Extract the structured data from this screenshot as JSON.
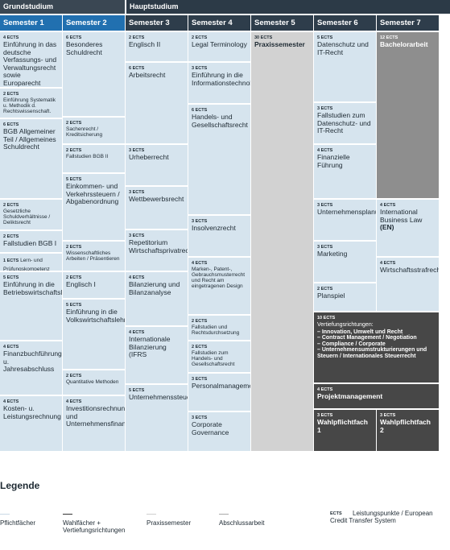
{
  "header": {
    "grundstudium": "Grundstudium",
    "hauptstudium": "Hauptstudium"
  },
  "semesters": [
    "Semester 1",
    "Semester 2",
    "Semester 3",
    "Semester 4",
    "Semester 5",
    "Semester 6",
    "Semester 7"
  ],
  "columns": [
    [
      {
        "ects": "4 ECTS",
        "title": "Einführung in das deutsche Verfassungs- und Verwaltungsrecht sowie Europarecht"
      },
      {
        "ects": "2 ECTS",
        "title": "Einführung Systematik u. Methodik d. Rechtswissenschaft."
      },
      {
        "ects": "6 ECTS",
        "title": "BGB Allgemeiner Teil / Allgemeines Schuldrecht"
      },
      {
        "ects": "2 ECTS",
        "title": "Gesetzliche Schuldverhältnisse / Deliktsrecht"
      },
      {
        "ects": "2 ECTS",
        "title": "Fallstudien BGB I"
      },
      {
        "ects": "1 ECTS",
        "title": "Lern- und Prüfungskompetenz"
      },
      {
        "ects": "5 ECTS",
        "title": "Einführung in die Betriebswirtschaftslehre"
      },
      {
        "ects": "4 ECTS",
        "title": "Finanzbuchführung u. Jahresabschluss"
      },
      {
        "ects": "4 ECTS",
        "title": "Kosten- u. Leistungsrechnung"
      }
    ],
    [
      {
        "ects": "6 ECTS",
        "title": "Besonderes Schuldrecht"
      },
      {
        "ects": "2 ECTS",
        "title": "Sachenrecht / Kreditsicherung"
      },
      {
        "ects": "2 ECTS",
        "title": "Fallstudien BGB II"
      },
      {
        "ects": "5 ECTS",
        "title": "Einkommen- und Verkehrssteuern / Abgabenordnung"
      },
      {
        "ects": "2 ECTS",
        "title": "Wissenschaftliches Arbeiten / Präsentieren"
      },
      {
        "ects": "2 ECTS",
        "title": "Englisch I"
      },
      {
        "ects": "5 ECTS",
        "title": "Einführung in die Volkswirtschaftslehre"
      },
      {
        "ects": "2 ECTS",
        "title": "Quantitative Methoden"
      },
      {
        "ects": "4 ECTS",
        "title": "Investitionsrechnung und Unternehmensfinanzierung"
      }
    ],
    [
      {
        "ects": "2 ECTS",
        "title": "Englisch II"
      },
      {
        "ects": "6 ECTS",
        "title": "Arbeitsrecht"
      },
      {
        "ects": "3 ECTS",
        "title": "Urheberrecht"
      },
      {
        "ects": "3 ECTS",
        "title": "Wettbewerbsrecht"
      },
      {
        "ects": "3 ECTS",
        "title": "Repetitorium Wirtschaftsprivatrecht"
      },
      {
        "ects": "4 ECTS",
        "title": "Bilanzierung und Bilanzanalyse"
      },
      {
        "ects": "4 ECTS",
        "title": "Internationale Bilanzierung (IFRS"
      },
      {
        "ects": "5 ECTS",
        "title": "Unternehmenssteuern"
      }
    ],
    [
      {
        "ects": "2 ECTS",
        "title": "Legal Terminology"
      },
      {
        "ects": "3 ECTS",
        "title": "Einführung in die Informationstechnologie"
      },
      {
        "ects": "6 ECTS",
        "title": "Handels- und Gesellschaftsrecht"
      },
      {
        "ects": "3 ECTS",
        "title": "Insolvenzrecht"
      },
      {
        "ects": "4 ECTS",
        "title": "Marken-, Patent-, Gebrauchsmusterrecht und Recht am eingetragenen Design"
      },
      {
        "ects": "2 ECTS",
        "title": "Fallstudien und Rechtsdurchsetzung"
      },
      {
        "ects": "2 ECTS",
        "title": "Fallstudien zum Handels- und Gesellschaftsrecht"
      },
      {
        "ects": "3 ECTS",
        "title": "Personalmanagement"
      },
      {
        "ects": "3 ECTS",
        "title": "Corporate Governance"
      }
    ],
    [
      {
        "ects": "30 ECTS",
        "title": "Praxissemester"
      }
    ],
    [
      {
        "ects": "5 ECTS",
        "title": "Datenschutz und IT-Recht"
      },
      {
        "ects": "3 ECTS",
        "title": "Fallstudien zum Datenschutz- und IT-Recht"
      },
      {
        "ects": "4 ECTS",
        "title": "Finanzielle Führung"
      },
      {
        "ects": "3 ECTS",
        "title": "Unternehmensplanung"
      },
      {
        "ects": "3 ECTS",
        "title": "Marketing"
      },
      {
        "ects": "2 ECTS",
        "title": "Planspiel"
      }
    ],
    [
      {
        "ects": "12 ECTS",
        "title": "Bachelorarbeit"
      },
      {
        "ects": "4 ECTS",
        "title": "International Business Law",
        "note": "(EN)"
      },
      {
        "ects": "4 ECTS",
        "title": "Wirtschaftsstrafrecht"
      }
    ]
  ],
  "vertiefung": {
    "ects": "10 ECTS",
    "title": "Vertiefungsrichtungen:",
    "items": [
      "– Innovation, Umwelt und Recht",
      "– Contract Management / Negotiation",
      "– Compliance / Corporate",
      "– Unternehmensumstrukturierungen und Steuern / Internationales Steuerrecht"
    ]
  },
  "projekt": {
    "ects": "4 ECTS",
    "title": "Projektmanagement"
  },
  "wahl": [
    {
      "ects": "3 ECTS",
      "title": "Wahlpflichtfach 1"
    },
    {
      "ects": "3 ECTS",
      "title": "Wahlpflichtfach 2"
    }
  ],
  "legend": {
    "title": "Legende",
    "items": [
      "Pflichtfächer",
      "Wahlfächer + Vertiefungsrichtungen",
      "Praxissemester",
      "Abschlussarbeit"
    ],
    "ects_abbr": "ECTS",
    "ects_text": "Leistungspunkte / European Credit Transfer System"
  }
}
